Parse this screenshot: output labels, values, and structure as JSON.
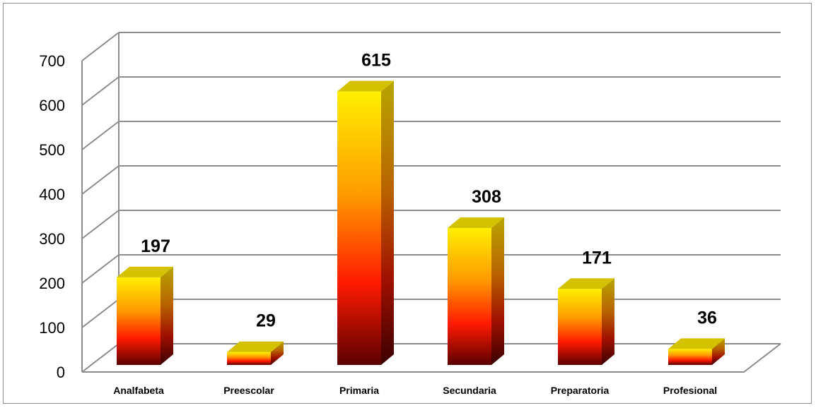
{
  "chart_data": {
    "type": "bar",
    "title": "",
    "xlabel": "",
    "ylabel": "",
    "categories": [
      "Analfabeta",
      "Preescolar",
      "Primaria",
      "Secundaria",
      "Preparatoria",
      "Profesional"
    ],
    "values": [
      197,
      29,
      615,
      308,
      171,
      36
    ],
    "data_labels": [
      "197",
      "29",
      "615",
      "308",
      "171",
      "36"
    ],
    "ylim": [
      0,
      700
    ],
    "yticks": [
      "0",
      "100",
      "200",
      "300",
      "400",
      "500",
      "600",
      "700"
    ],
    "grid": true,
    "legend": "none",
    "style": "3d-column",
    "colors": {
      "bar_top": "#ffef00",
      "bar_mid": "#ff8a00",
      "bar_low": "#ff1a00",
      "bar_bottom": "#5a0000",
      "bar_cap": "#d4c200",
      "grid": "#8c8c8c"
    }
  }
}
